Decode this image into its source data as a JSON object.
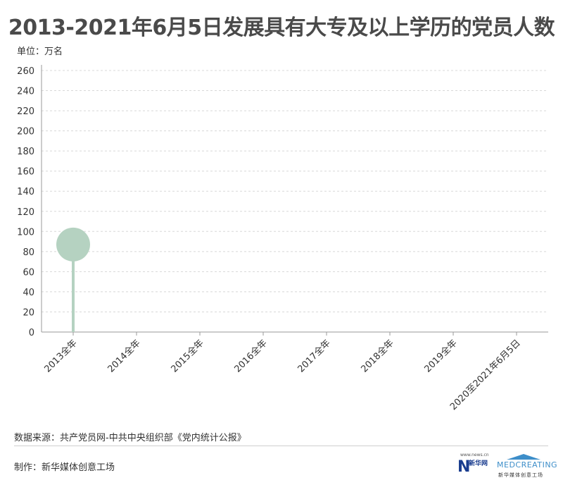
{
  "title": "2013-2021年6月5日发展具有大专及以上学历的党员人数",
  "unit_label": "单位：万名",
  "footer": {
    "source": "数据来源：共产党员网-中共中央组织部《党内统计公报》",
    "maker": "制作：新华媒体创意工场"
  },
  "logos": {
    "xinhua_site": "www.news.cn",
    "xinhua_mark": "N",
    "xinhua_cn": "新华网",
    "meo_en": "MEDCREATING",
    "meo_cn": "新华媒体创意工场"
  },
  "colors": {
    "marker": "#b5d2c1",
    "axis": "#9a9a9a",
    "grid": "#d8d8d8",
    "text": "#333333"
  },
  "chart_data": {
    "type": "lollipop",
    "title": "2013-2021年6月5日发展具有大专及以上学历的党员人数",
    "ylabel": "单位：万名",
    "categories": [
      "2013全年",
      "2014全年",
      "2015全年",
      "2016全年",
      "2017全年",
      "2018全年",
      "2019全年",
      "2020至2021年6月5日"
    ],
    "values": [
      87,
      null,
      null,
      null,
      null,
      null,
      null,
      null
    ],
    "ylim": [
      0,
      260
    ],
    "yticks": [
      0,
      20,
      40,
      60,
      80,
      100,
      120,
      140,
      160,
      180,
      200,
      220,
      240,
      260
    ],
    "grid": true,
    "legend": "none"
  }
}
